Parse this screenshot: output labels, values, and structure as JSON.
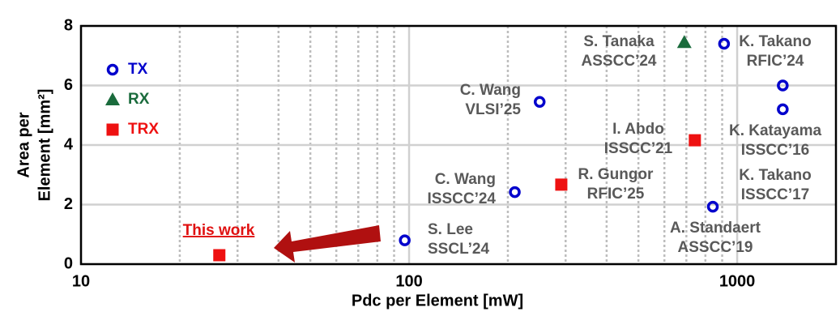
{
  "chart_data": {
    "type": "scatter",
    "xlabel": "Pdc per Element [mW]",
    "ylabel": [
      "Area per",
      "Element [mm²]"
    ],
    "xscale": "log",
    "xlim": [
      10,
      2000
    ],
    "ylim": [
      0,
      8
    ],
    "xticks": [
      10,
      100,
      1000
    ],
    "xminor_ticks": [
      20,
      30,
      40,
      50,
      60,
      70,
      80,
      90,
      200,
      300,
      400,
      500,
      600,
      700,
      800,
      900
    ],
    "yticks": [
      0,
      2,
      4,
      6,
      8
    ],
    "grid": true,
    "legend": "upper left",
    "series": [
      {
        "name": "TX",
        "color": "#0000cc",
        "marker": "ring",
        "x": [
          250,
          210,
          97,
          912,
          1377,
          1377,
          843
        ],
        "y": [
          5.45,
          2.42,
          0.8,
          7.4,
          6.0,
          5.2,
          1.93
        ],
        "labels": [
          [
            "C. Wang",
            "VLSI’25"
          ],
          [
            "C. Wang",
            "ISSCC’24"
          ],
          [
            "S. Lee",
            "SSCL’24"
          ],
          [
            "K. Takano",
            "RFIC’24"
          ],
          [
            "K. Takano",
            "ISSCC’17"
          ],
          [
            "K. Katayama",
            "ISSCC’16"
          ],
          [
            "A. Standaert",
            "ASSCC’19"
          ]
        ]
      },
      {
        "name": "RX",
        "color": "#1a6b3c",
        "marker": "triangle",
        "x": [
          690
        ],
        "y": [
          7.45
        ],
        "labels": [
          [
            "S. Tanaka",
            "ASSCC’24"
          ]
        ]
      },
      {
        "name": "TRX",
        "color": "#ee1111",
        "marker": "square",
        "x": [
          26.4,
          291,
          743
        ],
        "y": [
          0.3,
          2.67,
          4.16
        ],
        "labels": [
          [
            "This work"
          ],
          [
            "R. Gungor",
            "RFIC’25"
          ],
          [
            "I. Abdo",
            "ISSCC’21"
          ]
        ]
      }
    ]
  }
}
